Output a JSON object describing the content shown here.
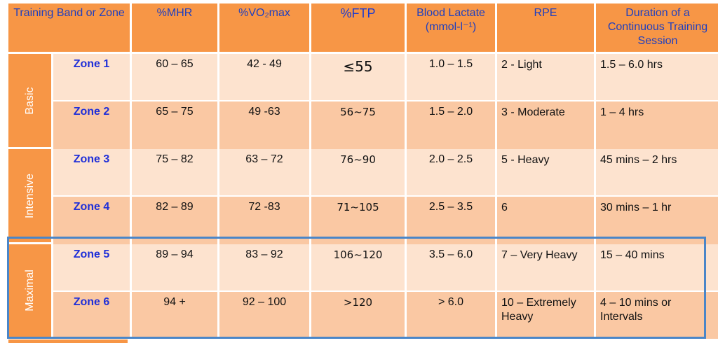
{
  "headers": {
    "band": "Training Band or Zone",
    "mhr": "%MHR",
    "vo2": "%VO₂max",
    "ftp": "%FTP",
    "lactate": "Blood Lactate (mmol-l⁻¹)",
    "rpe": "RPE",
    "duration": "Duration of a Continuous Training Session"
  },
  "bands": [
    "Basic",
    "Intensive",
    "Maximal"
  ],
  "rows": [
    {
      "zone": "Zone 1",
      "mhr": "60 – 65",
      "vo2": "42 - 49",
      "ftp": "≤55",
      "lactate": "1.0 – 1.5",
      "rpe": "2 - Light",
      "duration": "1.5 – 6.0 hrs"
    },
    {
      "zone": "Zone 2",
      "mhr": "65 – 75",
      "vo2": "49 -63",
      "ftp": "56~75",
      "lactate": "1.5 – 2.0",
      "rpe": "3 - Moderate",
      "duration": "1 – 4 hrs"
    },
    {
      "zone": "Zone 3",
      "mhr": "75 – 82",
      "vo2": "63 – 72",
      "ftp": "76~90",
      "lactate": "2.0 – 2.5",
      "rpe": "5 - Heavy",
      "duration": "45 mins – 2 hrs"
    },
    {
      "zone": "Zone 4",
      "mhr": "82 – 89",
      "vo2": "72 -83",
      "ftp": "71~105",
      "lactate": "2.5 – 3.5",
      "rpe": "6",
      "duration": "30 mins – 1 hr"
    },
    {
      "zone": "Zone 5",
      "mhr": "89 – 94",
      "vo2": "83 – 92",
      "ftp": "106~120",
      "lactate": "3.5 – 6.0",
      "rpe": "7 – Very Heavy",
      "duration": "15 – 40 mins"
    },
    {
      "zone": "Zone 6",
      "mhr": "94 +",
      "vo2": "92 – 100",
      "ftp": ">120",
      "lactate": "> 6.0",
      "rpe": "10 – Extremely Heavy",
      "duration": "4 – 10 mins or Intervals"
    }
  ],
  "colors": {
    "header_bg": "#f79646",
    "row_light": "#fde3cf",
    "row_dark": "#fac8a3",
    "zone_text": "#1f2fd8",
    "highlight_border": "#4a86c8"
  }
}
